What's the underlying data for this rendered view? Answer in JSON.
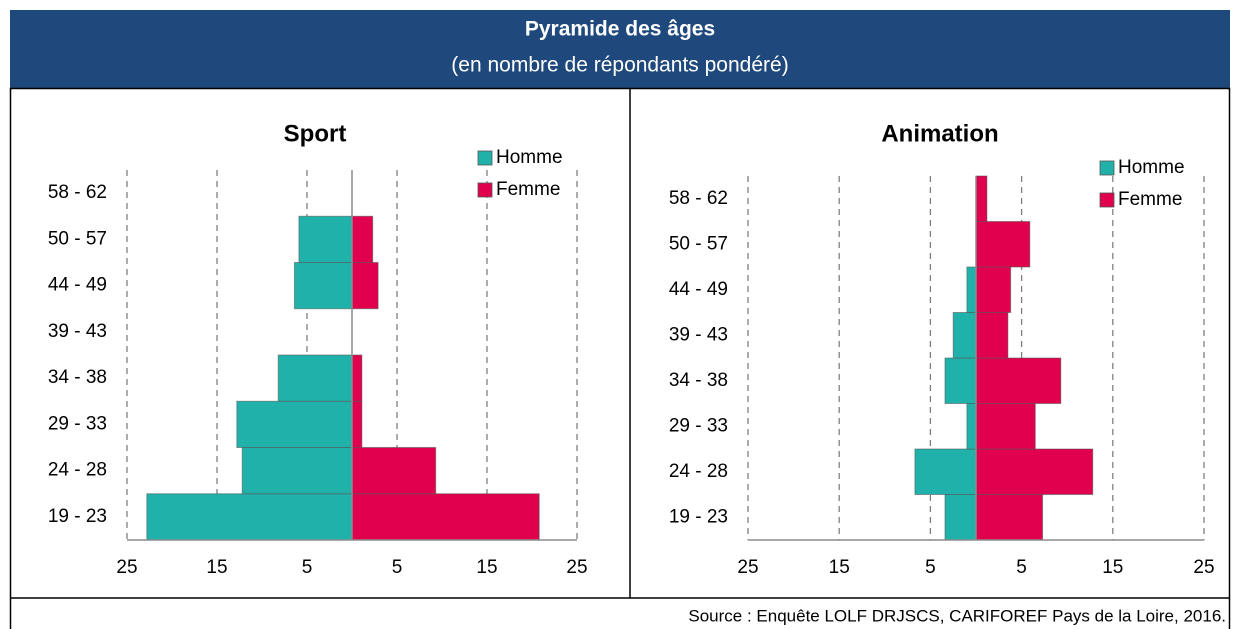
{
  "header": {
    "title": "Pyramide des âges",
    "subtitle": "(en nombre de répondants pondéré)"
  },
  "source": "Source : Enquête LOLF DRJSCS, CARIFOREF Pays de la Loire, 2016.",
  "chart_data": [
    {
      "type": "bar",
      "title": "Sport",
      "categories": [
        "19 - 23",
        "24 - 28",
        "29 - 33",
        "34 - 38",
        "39 - 43",
        "44 - 49",
        "50 - 57",
        "58 - 62"
      ],
      "series": [
        {
          "name": "Homme",
          "color": "#20b2aa",
          "values": [
            -22.8,
            -12.2,
            -12.8,
            -8.2,
            0,
            -6.4,
            -5.9,
            0
          ]
        },
        {
          "name": "Femme",
          "color": "#e0004d",
          "values": [
            20.8,
            9.3,
            1.1,
            1.1,
            0,
            2.9,
            2.3,
            0
          ]
        }
      ],
      "xlim": [
        -25,
        25
      ],
      "xticks": [
        {
          "value": -25,
          "label": "25"
        },
        {
          "value": -15,
          "label": "15"
        },
        {
          "value": -5,
          "label": "5"
        },
        5,
        15,
        25
      ],
      "grid": true,
      "legend": "top-right"
    },
    {
      "type": "bar",
      "title": "Animation",
      "categories": [
        "19 - 23",
        "24 - 28",
        "29 - 33",
        "34 - 38",
        "39 - 43",
        "44 - 49",
        "50 - 57",
        "58 - 62"
      ],
      "series": [
        {
          "name": "Homme",
          "color": "#20b2aa",
          "values": [
            -3.4,
            -6.7,
            -1.0,
            -3.4,
            -2.5,
            -1.0,
            0,
            0
          ]
        },
        {
          "name": "Femme",
          "color": "#e0004d",
          "values": [
            7.3,
            12.8,
            6.5,
            9.3,
            3.5,
            3.8,
            5.9,
            1.2
          ]
        }
      ],
      "xlim": [
        -25,
        25
      ],
      "xticks": [
        {
          "value": -25,
          "label": "25"
        },
        {
          "value": -15,
          "label": "15"
        },
        {
          "value": -5,
          "label": "5"
        },
        5,
        15,
        25
      ],
      "grid": true,
      "legend": "top-right"
    }
  ]
}
